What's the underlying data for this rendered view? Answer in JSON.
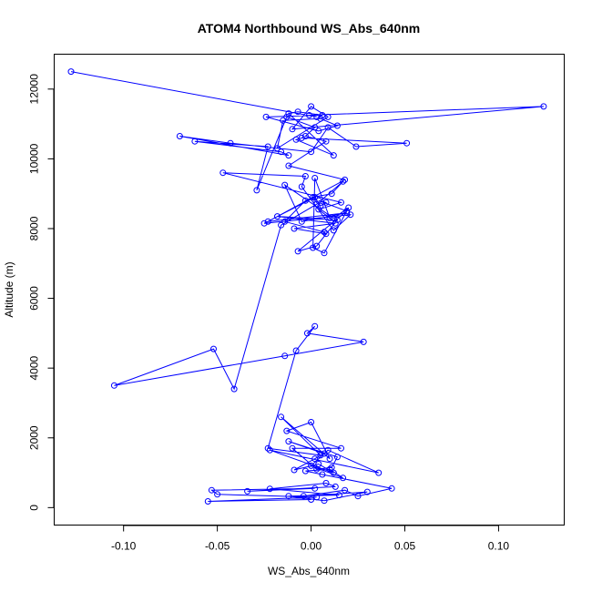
{
  "chart_data": {
    "type": "line",
    "title": "ATOM4 Northbound WS_Abs_640nm",
    "xlabel": "WS_Abs_640nm",
    "ylabel": "Altitude (m)",
    "xlim": [
      -0.137,
      0.135
    ],
    "ylim": [
      -500,
      13000
    ],
    "x_ticks": [
      -0.1,
      -0.05,
      0.0,
      0.05,
      0.1
    ],
    "x_tick_labels": [
      "-0.10",
      "-0.05",
      "0.00",
      "0.05",
      "0.10"
    ],
    "y_ticks": [
      0,
      2000,
      4000,
      6000,
      8000,
      10000,
      12000
    ],
    "y_tick_labels": [
      "0",
      "2000",
      "4000",
      "6000",
      "8000",
      "10000",
      "12000"
    ],
    "grid": false,
    "legend": "none",
    "color": "#0000ff",
    "marker": "open-circle",
    "series": [
      {
        "x": [
          0.0,
          -0.055,
          0.003,
          -0.05,
          -0.053,
          0.002,
          -0.034,
          0.013,
          0.008,
          -0.022,
          0.015,
          -0.012,
          0.007,
          0.03,
          -0.004,
          0.018,
          0.025,
          0.043,
          0.006,
          -0.003,
          0.01,
          0.017,
          0.0,
          0.009,
          0.036,
          -0.022,
          0.012,
          0.004,
          -0.009,
          0.002,
          0.007,
          -0.012,
          0.014,
          0.011,
          0.003,
          -0.01,
          0.016,
          -0.013,
          0.0,
          0.01,
          -0.016,
          0.005,
          -0.023,
          -0.008,
          0.002,
          -0.002,
          0.028,
          -0.014,
          -0.105,
          -0.052,
          -0.041,
          -0.016,
          0.003,
          0.017,
          0.011,
          0.001,
          -0.003,
          -0.014,
          0.007,
          0.008,
          -0.009,
          0.013,
          -0.018,
          0.014,
          0.003,
          -0.007,
          0.019,
          0.004,
          0.008,
          0.005,
          0.002,
          -0.025,
          0.021,
          0.012,
          -0.005,
          -0.003,
          -0.047,
          0.016,
          0.004,
          0.01,
          0.002,
          0.001,
          0.007,
          0.02,
          0.012,
          -0.014,
          -0.005,
          0.019,
          -0.023,
          0.018,
          -0.012,
          0.008,
          -0.003,
          0.002,
          -0.013,
          -0.029,
          -0.023,
          -0.062,
          -0.016,
          -0.012,
          -0.07,
          -0.043,
          0.0,
          0.009,
          0.024,
          0.051,
          -0.005,
          -0.008,
          0.012,
          -0.012,
          -0.007,
          0.006,
          -0.024,
          0.004,
          0.014,
          0.005,
          -0.015,
          -0.018,
          0.009,
          0.0,
          -0.01,
          0.124,
          -0.001,
          0.003,
          -0.128
        ],
        "y": [
          230,
          180,
          300,
          380,
          500,
          550,
          470,
          600,
          700,
          540,
          360,
          330,
          200,
          450,
          330,
          500,
          330,
          550,
          950,
          1050,
          1100,
          850,
          1200,
          1650,
          1000,
          1650,
          1000,
          1250,
          1080,
          1400,
          1550,
          1900,
          1450,
          1150,
          1100,
          1700,
          1700,
          2200,
          2450,
          1400,
          2600,
          1500,
          1700,
          4500,
          5200,
          5000,
          4750,
          4350,
          3500,
          4550,
          3400,
          8100,
          8700,
          9350,
          9000,
          8900,
          8800,
          8200,
          7900,
          7850,
          8000,
          8150,
          8350,
          8250,
          7500,
          7350,
          8500,
          8800,
          8750,
          8650,
          8900,
          8150,
          8400,
          7950,
          9200,
          9500,
          9600,
          8750,
          8550,
          8300,
          9450,
          7450,
          7300,
          8600,
          8300,
          9250,
          8200,
          8450,
          8200,
          9400,
          9800,
          10500,
          10650,
          10900,
          11200,
          9100,
          10350,
          10500,
          10200,
          10100,
          10650,
          10450,
          10200,
          10900,
          10350,
          10450,
          10600,
          10550,
          10100,
          11300,
          11350,
          11250,
          11200,
          10800,
          10950,
          11150,
          11100,
          10300,
          11200,
          11500,
          10850,
          11500,
          11250,
          11200,
          12500
        ]
      }
    ]
  }
}
